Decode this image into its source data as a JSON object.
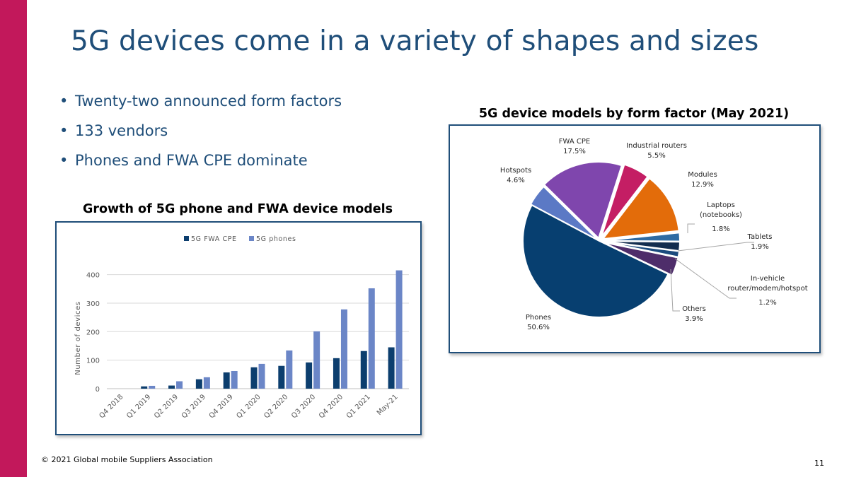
{
  "slide": {
    "title": "5G devices come in a variety of shapes and sizes",
    "bullets": [
      "Twenty-two announced form factors",
      "133 vendors",
      "Phones and FWA CPE dominate"
    ],
    "footer": "© 2021 Global mobile Suppliers Association",
    "page_number": "11",
    "accent_color": "#c2185b",
    "text_color": "#1f4e79"
  },
  "chart_data": [
    {
      "type": "bar",
      "title": "Growth of 5G phone and FWA device models",
      "xlabel": "",
      "ylabel": "Number of devices",
      "categories": [
        "Q4 2018",
        "Q1 2019",
        "Q2 2019",
        "Q3 2019",
        "Q4 2019",
        "Q1 2020",
        "Q2 2020",
        "Q3 2020",
        "Q4 2020",
        "Q1 2021",
        "May-21"
      ],
      "series": [
        {
          "name": "5G FWA CPE",
          "color": "#0c3e6e",
          "values": [
            0,
            8,
            11,
            33,
            57,
            75,
            80,
            92,
            107,
            132,
            145
          ]
        },
        {
          "name": "5G phones",
          "color": "#6b86c7",
          "values": [
            0,
            10,
            26,
            40,
            62,
            87,
            134,
            201,
            278,
            352,
            415
          ]
        }
      ],
      "ylim": [
        0,
        400
      ],
      "yticks": [
        0,
        100,
        200,
        300,
        400
      ],
      "grid": true,
      "legend_position": "top"
    },
    {
      "type": "pie",
      "title": "5G device models by form factor (May 2021)",
      "slices": [
        {
          "label": "Hotspots",
          "label_lines": [
            "Hotspots"
          ],
          "value_text": "4.6%",
          "value": 4.6,
          "color": "#5b79c5"
        },
        {
          "label": "FWA CPE",
          "label_lines": [
            "FWA CPE"
          ],
          "value_text": "17.5%",
          "value": 17.5,
          "color": "#7f46ad"
        },
        {
          "label": "Industrial routers",
          "label_lines": [
            "Industrial routers"
          ],
          "value_text": "5.5%",
          "value": 5.5,
          "color": "#c41e64"
        },
        {
          "label": "Modules",
          "label_lines": [
            "Modules"
          ],
          "value_text": "12.9%",
          "value": 12.9,
          "color": "#e36c0a"
        },
        {
          "label": "Laptops (notebooks)",
          "label_lines": [
            "Laptops",
            "(notebooks)"
          ],
          "value_text": "1.8%",
          "value": 1.8,
          "color": "#2e6ba3"
        },
        {
          "label": "Tablets",
          "label_lines": [
            "Tablets"
          ],
          "value_text": "1.9%",
          "value": 1.9,
          "color": "#132d4f"
        },
        {
          "label": "In-vehicle router/modem/hotspot",
          "label_lines": [
            "In-vehicle",
            "router/modem/hotspot"
          ],
          "value_text": "1.2%",
          "value": 1.2,
          "color": "#1c4b7e"
        },
        {
          "label": "Others",
          "label_lines": [
            "Others"
          ],
          "value_text": "3.9%",
          "value": 3.9,
          "color": "#4e2d6a"
        },
        {
          "label": "Phones",
          "label_lines": [
            "Phones"
          ],
          "value_text": "50.6%",
          "value": 50.6,
          "color": "#073f70"
        }
      ]
    }
  ]
}
